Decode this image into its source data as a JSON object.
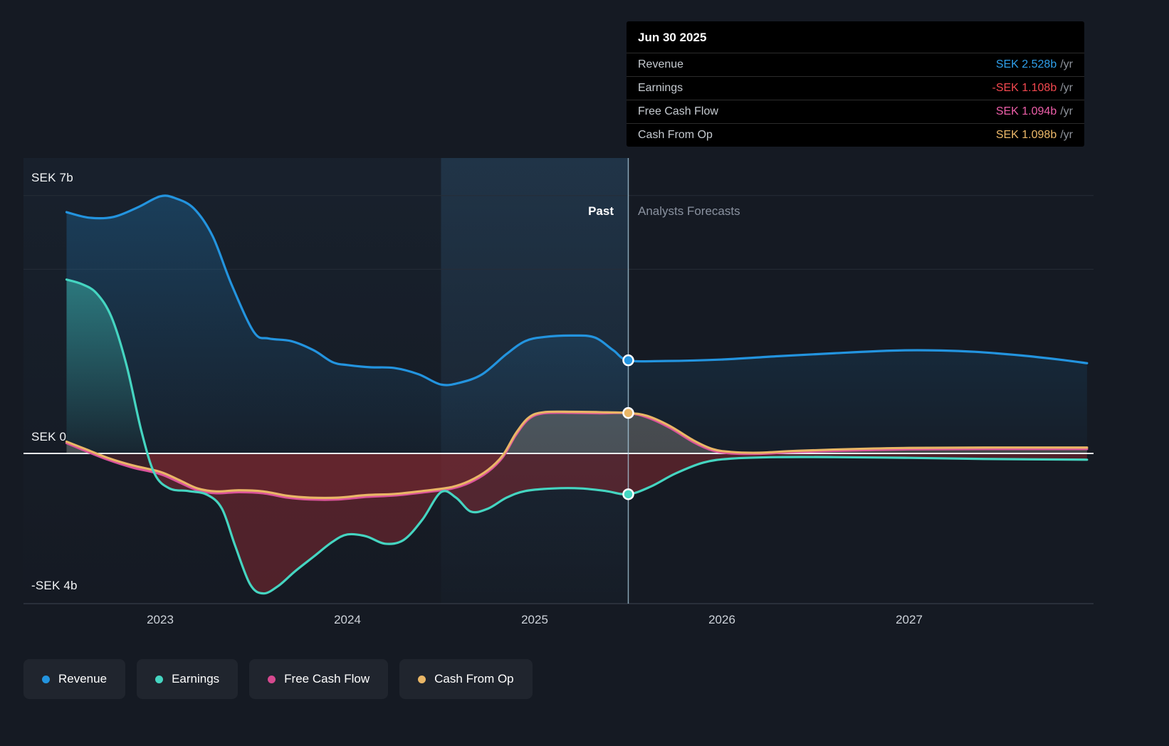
{
  "tooltip": {
    "date": "Jun 30 2025",
    "rows": [
      {
        "label": "Revenue",
        "value": "SEK 2.528b",
        "suffix": "/yr",
        "color": "#2F9FEA"
      },
      {
        "label": "Earnings",
        "value": "-SEK 1.108b",
        "suffix": "/yr",
        "color": "#F4484F"
      },
      {
        "label": "Free Cash Flow",
        "value": "SEK 1.094b",
        "suffix": "/yr",
        "color": "#ED5FA9"
      },
      {
        "label": "Cash From Op",
        "value": "SEK 1.098b",
        "suffix": "/yr",
        "color": "#EDB96A"
      }
    ]
  },
  "chart_labels": {
    "past": "Past",
    "forecast": "Analysts Forecasts"
  },
  "y_axis_labels": [
    {
      "text": "SEK 7b"
    },
    {
      "text": "SEK 0"
    },
    {
      "text": "-SEK 4b"
    }
  ],
  "x_axis_labels": [
    "2023",
    "2024",
    "2025",
    "2026",
    "2027"
  ],
  "legend": [
    {
      "label": "Revenue",
      "color": "#2394DF"
    },
    {
      "label": "Earnings",
      "color": "#45D5C1"
    },
    {
      "label": "Free Cash Flow",
      "color": "#D6498F"
    },
    {
      "label": "Cash From Op",
      "color": "#E9B666"
    }
  ],
  "chart_data": {
    "type": "line",
    "title": "Earnings and Revenue Growth",
    "x_unit": "year",
    "y_unit": "SEK billions",
    "xlim": [
      2022.45,
      2027.95
    ],
    "ylim": [
      -4.08,
      8.0
    ],
    "grid": "partial-horizontal",
    "x_axis": {
      "ticks": [
        2023,
        2024,
        2025,
        2026,
        2027
      ]
    },
    "y_axis": {
      "gridlines": [
        7,
        5
      ],
      "zero_line": 0,
      "labeled_values": [
        7,
        0,
        -4
      ]
    },
    "divider": {
      "x": 2025.5,
      "date": "Jun 30 2025",
      "left_label": "Past",
      "right_label": "Analysts Forecasts"
    },
    "highlight_band": {
      "from": 2024.5,
      "to": 2025.5
    },
    "negative_fill_color": "#8B2A32",
    "series": [
      {
        "name": "Revenue",
        "color": "#2394DF",
        "marker": {
          "x": 2025.5,
          "y": 2.528
        },
        "areas": [
          {
            "clip": "pos",
            "fill": "gradient"
          }
        ],
        "points": [
          [
            2022.5,
            6.55
          ],
          [
            2022.62,
            6.4
          ],
          [
            2022.75,
            6.42
          ],
          [
            2022.88,
            6.68
          ],
          [
            2023.0,
            6.98
          ],
          [
            2023.08,
            6.93
          ],
          [
            2023.18,
            6.65
          ],
          [
            2023.28,
            5.9
          ],
          [
            2023.38,
            4.6
          ],
          [
            2023.5,
            3.3
          ],
          [
            2023.58,
            3.12
          ],
          [
            2023.7,
            3.05
          ],
          [
            2023.82,
            2.8
          ],
          [
            2023.92,
            2.48
          ],
          [
            2024.0,
            2.4
          ],
          [
            2024.12,
            2.34
          ],
          [
            2024.25,
            2.32
          ],
          [
            2024.38,
            2.15
          ],
          [
            2024.5,
            1.87
          ],
          [
            2024.6,
            1.92
          ],
          [
            2024.72,
            2.15
          ],
          [
            2024.85,
            2.7
          ],
          [
            2024.95,
            3.05
          ],
          [
            2025.05,
            3.16
          ],
          [
            2025.2,
            3.2
          ],
          [
            2025.32,
            3.15
          ],
          [
            2025.42,
            2.8
          ],
          [
            2025.5,
            2.528
          ],
          [
            2025.7,
            2.51
          ],
          [
            2026.0,
            2.55
          ],
          [
            2026.3,
            2.64
          ],
          [
            2026.6,
            2.72
          ],
          [
            2026.9,
            2.79
          ],
          [
            2027.1,
            2.8
          ],
          [
            2027.35,
            2.76
          ],
          [
            2027.6,
            2.66
          ],
          [
            2027.8,
            2.55
          ],
          [
            2027.95,
            2.45
          ]
        ]
      },
      {
        "name": "Earnings",
        "color": "#45D5C1",
        "marker": {
          "x": 2025.5,
          "y": -1.108
        },
        "areas": [
          {
            "clip": "pos",
            "fill": "gradient"
          },
          {
            "clip": "neg",
            "fill": "#8B2A32",
            "opacity": 0.5
          }
        ],
        "points": [
          [
            2022.5,
            4.72
          ],
          [
            2022.58,
            4.6
          ],
          [
            2022.66,
            4.35
          ],
          [
            2022.74,
            3.7
          ],
          [
            2022.82,
            2.4
          ],
          [
            2022.9,
            0.6
          ],
          [
            2022.97,
            -0.55
          ],
          [
            2023.05,
            -0.95
          ],
          [
            2023.15,
            -1.02
          ],
          [
            2023.25,
            -1.12
          ],
          [
            2023.33,
            -1.5
          ],
          [
            2023.4,
            -2.5
          ],
          [
            2023.48,
            -3.55
          ],
          [
            2023.55,
            -3.8
          ],
          [
            2023.63,
            -3.6
          ],
          [
            2023.72,
            -3.2
          ],
          [
            2023.82,
            -2.8
          ],
          [
            2023.92,
            -2.4
          ],
          [
            2024.0,
            -2.2
          ],
          [
            2024.1,
            -2.25
          ],
          [
            2024.2,
            -2.45
          ],
          [
            2024.3,
            -2.35
          ],
          [
            2024.4,
            -1.8
          ],
          [
            2024.5,
            -1.05
          ],
          [
            2024.58,
            -1.2
          ],
          [
            2024.66,
            -1.58
          ],
          [
            2024.75,
            -1.5
          ],
          [
            2024.85,
            -1.2
          ],
          [
            2024.95,
            -1.02
          ],
          [
            2025.1,
            -0.95
          ],
          [
            2025.25,
            -0.95
          ],
          [
            2025.38,
            -1.02
          ],
          [
            2025.5,
            -1.108
          ],
          [
            2025.62,
            -0.9
          ],
          [
            2025.75,
            -0.55
          ],
          [
            2025.9,
            -0.25
          ],
          [
            2026.05,
            -0.14
          ],
          [
            2026.3,
            -0.1
          ],
          [
            2026.6,
            -0.1
          ],
          [
            2027.0,
            -0.12
          ],
          [
            2027.4,
            -0.15
          ],
          [
            2027.95,
            -0.17
          ]
        ]
      },
      {
        "name": "Free Cash Flow",
        "color": "#DB549B",
        "marker": null,
        "areas": [],
        "points": [
          [
            2022.5,
            0.28
          ],
          [
            2022.6,
            0.07
          ],
          [
            2022.72,
            -0.17
          ],
          [
            2022.85,
            -0.38
          ],
          [
            2023.0,
            -0.56
          ],
          [
            2023.1,
            -0.78
          ],
          [
            2023.2,
            -1.0
          ],
          [
            2023.3,
            -1.08
          ],
          [
            2023.42,
            -1.05
          ],
          [
            2023.55,
            -1.08
          ],
          [
            2023.68,
            -1.2
          ],
          [
            2023.8,
            -1.25
          ],
          [
            2023.95,
            -1.25
          ],
          [
            2024.1,
            -1.18
          ],
          [
            2024.25,
            -1.14
          ],
          [
            2024.4,
            -1.06
          ],
          [
            2024.55,
            -0.96
          ],
          [
            2024.65,
            -0.8
          ],
          [
            2024.75,
            -0.5
          ],
          [
            2024.83,
            -0.1
          ],
          [
            2024.9,
            0.5
          ],
          [
            2024.97,
            0.94
          ],
          [
            2025.05,
            1.09
          ],
          [
            2025.2,
            1.1
          ],
          [
            2025.35,
            1.09
          ],
          [
            2025.5,
            1.094
          ],
          [
            2025.6,
            0.98
          ],
          [
            2025.72,
            0.7
          ],
          [
            2025.85,
            0.3
          ],
          [
            2025.95,
            0.08
          ],
          [
            2026.05,
            0.0
          ],
          [
            2026.2,
            -0.01
          ],
          [
            2026.4,
            0.04
          ],
          [
            2026.7,
            0.08
          ],
          [
            2027.0,
            0.11
          ],
          [
            2027.4,
            0.12
          ],
          [
            2027.95,
            0.12
          ]
        ]
      },
      {
        "name": "Cash From Op",
        "color": "#E9B666",
        "marker": {
          "x": 2025.5,
          "y": 1.098
        },
        "areas": [
          {
            "clip": "pos",
            "fill": "#B9AEA2",
            "opacity": 0.3
          },
          {
            "clip": "neg",
            "fill": "#8B2A32",
            "opacity": 0.3
          }
        ],
        "points": [
          [
            2022.5,
            0.32
          ],
          [
            2022.6,
            0.12
          ],
          [
            2022.72,
            -0.12
          ],
          [
            2022.85,
            -0.32
          ],
          [
            2023.0,
            -0.5
          ],
          [
            2023.1,
            -0.72
          ],
          [
            2023.2,
            -0.95
          ],
          [
            2023.3,
            -1.03
          ],
          [
            2023.42,
            -1.0
          ],
          [
            2023.55,
            -1.03
          ],
          [
            2023.68,
            -1.15
          ],
          [
            2023.8,
            -1.2
          ],
          [
            2023.95,
            -1.2
          ],
          [
            2024.1,
            -1.13
          ],
          [
            2024.25,
            -1.1
          ],
          [
            2024.4,
            -1.02
          ],
          [
            2024.55,
            -0.92
          ],
          [
            2024.65,
            -0.75
          ],
          [
            2024.75,
            -0.45
          ],
          [
            2024.83,
            -0.05
          ],
          [
            2024.9,
            0.55
          ],
          [
            2024.97,
            0.98
          ],
          [
            2025.05,
            1.12
          ],
          [
            2025.2,
            1.13
          ],
          [
            2025.35,
            1.12
          ],
          [
            2025.5,
            1.098
          ],
          [
            2025.6,
            1.02
          ],
          [
            2025.72,
            0.75
          ],
          [
            2025.85,
            0.35
          ],
          [
            2025.95,
            0.12
          ],
          [
            2026.05,
            0.04
          ],
          [
            2026.2,
            0.02
          ],
          [
            2026.4,
            0.07
          ],
          [
            2026.7,
            0.12
          ],
          [
            2027.0,
            0.15
          ],
          [
            2027.4,
            0.16
          ],
          [
            2027.95,
            0.16
          ]
        ]
      }
    ]
  }
}
